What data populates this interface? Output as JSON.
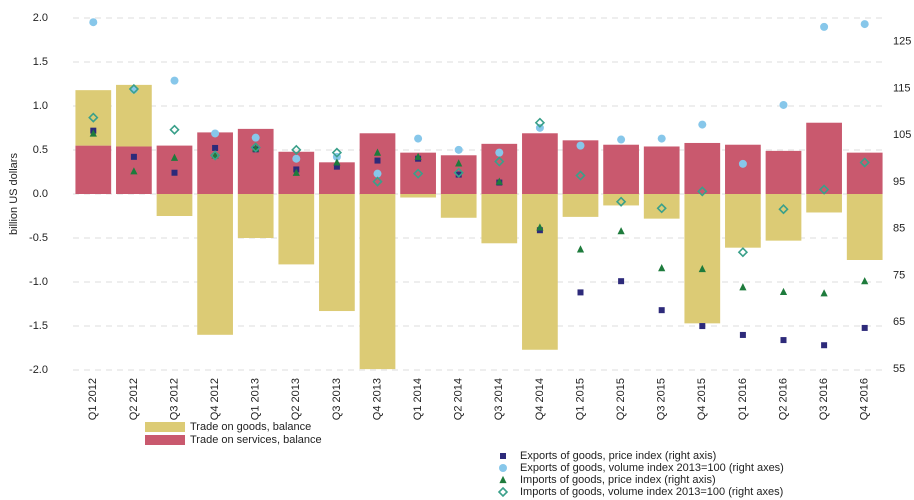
{
  "chart_data": {
    "type": "bar",
    "y_label": "billion US dollars",
    "categories": [
      "Q1 2012",
      "Q2 2012",
      "Q3 2012",
      "Q4 2012",
      "Q1 2013",
      "Q2 2013",
      "Q3 2013",
      "Q4 2013",
      "Q1 2014",
      "Q2 2014",
      "Q3 2014",
      "Q4 2014",
      "Q1 2015",
      "Q2 2015",
      "Q3 2015",
      "Q4 2015",
      "Q1 2016",
      "Q2 2016",
      "Q3 2016",
      "Q4 2016"
    ],
    "ylim": [
      -2,
      2
    ],
    "yticks": [
      {
        "value": 2,
        "label": "2.0"
      },
      1.5,
      {
        "value": 1,
        "label": "1.0"
      },
      0.5,
      {
        "value": 0,
        "label": "0.0"
      },
      -0.5,
      {
        "value": -1,
        "label": "-1.0"
      },
      -1.5,
      {
        "value": -2,
        "label": "-2.0"
      }
    ],
    "y2lim": [
      54.8,
      130.1
    ],
    "y2ticks": [
      55,
      65,
      75,
      85,
      95,
      105,
      115,
      125
    ],
    "grid": true,
    "legend": "bottom",
    "series": [
      {
        "name": "Trade on goods, balance",
        "type": "bar",
        "color": "#dccb75",
        "values": [
          0.63,
          0.7,
          -0.25,
          -1.6,
          -0.5,
          -0.8,
          -1.33,
          -1.99,
          -0.04,
          -0.27,
          -0.56,
          -1.77,
          -0.26,
          -0.13,
          -0.28,
          -1.47,
          -0.61,
          -0.53,
          -0.21,
          -0.75
        ]
      },
      {
        "name": "Trade on services, balance",
        "type": "bar",
        "color": "#c9596e",
        "values": [
          0.55,
          0.54,
          0.55,
          0.7,
          0.74,
          0.48,
          0.36,
          0.69,
          0.47,
          0.44,
          0.57,
          0.69,
          0.61,
          0.56,
          0.54,
          0.58,
          0.56,
          0.49,
          0.81,
          0.47
        ]
      },
      {
        "name": "Exports of goods, price index (right axis)",
        "type": "scatter",
        "marker": "square",
        "axis": "y2",
        "color": "#2d2a7a",
        "values": [
          106,
          100.4,
          97,
          102.3,
          102,
          97.7,
          98.3,
          99.6,
          100,
          96.6,
          94.9,
          84.7,
          71.4,
          73.8,
          67.6,
          64.2,
          62.3,
          61.2,
          60.1,
          63.8
        ]
      },
      {
        "name": "Exports of goods, volume index 2013=100 (right axes)",
        "type": "scatter",
        "marker": "circle",
        "axis": "y2",
        "color": "#87c7ea",
        "values": [
          129.2,
          114.8,
          116.7,
          105.4,
          104.5,
          100,
          100.4,
          96.8,
          104.3,
          101.9,
          101.3,
          106.6,
          102.8,
          104.1,
          104.3,
          107.3,
          98.9,
          111.5,
          128.2,
          128.8
        ]
      },
      {
        "name": "Imports of goods, price index (right axis)",
        "type": "scatter",
        "marker": "triangle",
        "axis": "y2",
        "color": "#1e7b3c",
        "values": [
          105.4,
          97.3,
          100.2,
          100.7,
          102.2,
          97,
          99.2,
          101.3,
          100.4,
          99,
          95.1,
          85.3,
          80.6,
          84.5,
          76.6,
          76.4,
          72.5,
          71.5,
          71.2,
          73.8
        ]
      },
      {
        "name": "Imports of goods, volume index 2013=100 (right axes)",
        "type": "scatter",
        "marker": "diamond",
        "axis": "y2",
        "color": "#3aa08a",
        "values": [
          108.8,
          114.9,
          106.2,
          100.7,
          102.4,
          101.9,
          101.3,
          95.1,
          96.8,
          97,
          99.4,
          107.7,
          96.4,
          90.8,
          89.4,
          93,
          80,
          89.2,
          93.4,
          99.2
        ]
      }
    ]
  }
}
